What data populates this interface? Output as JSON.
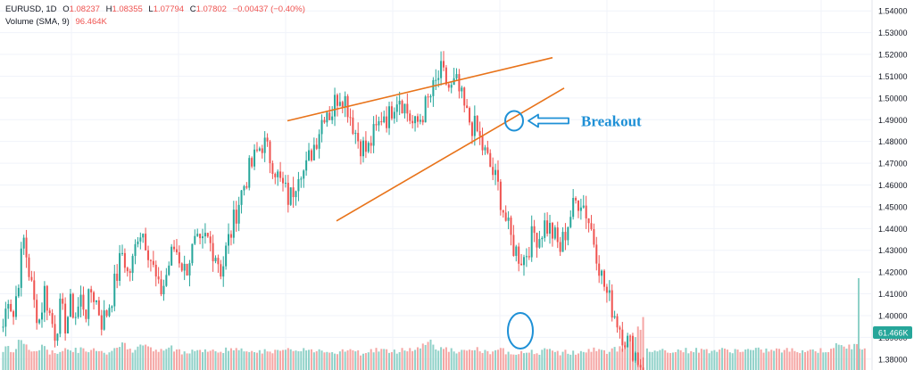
{
  "legend": {
    "symbol": "EURUSD, 1D",
    "o_label": "O",
    "o_value": "1.08237",
    "h_label": "H",
    "h_value": "1.08355",
    "l_label": "L",
    "l_value": "1.07794",
    "c_label": "C",
    "c_value": "1.07802",
    "change": "−0.00437 (−0.40%)",
    "volume_label": "Volume (SMA, 9)",
    "volume_value": "96.464K"
  },
  "colors": {
    "up": "#26a69a",
    "down": "#ef5350",
    "vol_up": "#8fd1c8",
    "vol_down": "#f5a6a4",
    "trendline": "#e8731a",
    "annotation": "#1e90d6",
    "grid": "#f0f3fa",
    "axis_text": "#131722",
    "badge": "#26a69a"
  },
  "annotation": {
    "text": "Breakout"
  },
  "volume_badge": "61.466K",
  "chart_data": {
    "type": "candlestick",
    "ylim": [
      1.375,
      1.545
    ],
    "y_ticks": [
      "1.54000",
      "1.53000",
      "1.52000",
      "1.51000",
      "1.50000",
      "1.49000",
      "1.48000",
      "1.47000",
      "1.46000",
      "1.45000",
      "1.44000",
      "1.43000",
      "1.42000",
      "1.41000",
      "1.40000",
      "1.39000",
      "1.38000"
    ],
    "grid": true,
    "series": [
      {
        "name": "EURUSD",
        "close_path": [
          1.395,
          1.41,
          1.4,
          1.418,
          1.435,
          1.42,
          1.405,
          1.398,
          1.412,
          1.4,
          1.392,
          1.403,
          1.396,
          1.405,
          1.4,
          1.408,
          1.402,
          1.412,
          1.406,
          1.397,
          1.402,
          1.41,
          1.42,
          1.43,
          1.418,
          1.425,
          1.44,
          1.438,
          1.43,
          1.42,
          1.41,
          1.415,
          1.425,
          1.432,
          1.426,
          1.42,
          1.428,
          1.433,
          1.43,
          1.436,
          1.432,
          1.428,
          1.42,
          1.432,
          1.44,
          1.45,
          1.458,
          1.465,
          1.47,
          1.476,
          1.48,
          1.474,
          1.47,
          1.462,
          1.458,
          1.453,
          1.46,
          1.47,
          1.465,
          1.474,
          1.48,
          1.488,
          1.496,
          1.492,
          1.5,
          1.503,
          1.498,
          1.49,
          1.482,
          1.478,
          1.475,
          1.482,
          1.486,
          1.494,
          1.49,
          1.498,
          1.502,
          1.497,
          1.492,
          1.486,
          1.49,
          1.495,
          1.5,
          1.505,
          1.512,
          1.508,
          1.503,
          1.507,
          1.5,
          1.492,
          1.488,
          1.485,
          1.478,
          1.472,
          1.466,
          1.46,
          1.45,
          1.44,
          1.432,
          1.428,
          1.426,
          1.432,
          1.438,
          1.436,
          1.442,
          1.44,
          1.436,
          1.43,
          1.438,
          1.446,
          1.452,
          1.454,
          1.448,
          1.44,
          1.43,
          1.418,
          1.41,
          1.404,
          1.398,
          1.392,
          1.388,
          1.385,
          1.38,
          1.376
        ],
        "volume_path": [
          0.4,
          0.45,
          0.35,
          0.55,
          0.6,
          0.4,
          0.38,
          0.42,
          0.5,
          0.36,
          0.34,
          0.4,
          0.45,
          0.38,
          0.4,
          0.42,
          0.36,
          0.4,
          0.44,
          0.38,
          0.35,
          0.42,
          0.48,
          0.55,
          0.42,
          0.4,
          0.58,
          0.5,
          0.44,
          0.4,
          0.38,
          0.42,
          0.46,
          0.4,
          0.38,
          0.36,
          0.4,
          0.42,
          0.38,
          0.4,
          0.38,
          0.36,
          0.4,
          0.42,
          0.44,
          0.4,
          0.38,
          0.4,
          0.42,
          0.4,
          0.38,
          0.36,
          0.4,
          0.38,
          0.36,
          0.4,
          0.42,
          0.44,
          0.4,
          0.38,
          0.4,
          0.42,
          0.4,
          0.38,
          0.36,
          0.4,
          0.42,
          0.38,
          0.36,
          0.34,
          0.38,
          0.4,
          0.42,
          0.4,
          0.38,
          0.36,
          0.4,
          0.42,
          0.44,
          0.4,
          0.46,
          0.55,
          0.6,
          0.48,
          0.44,
          0.42,
          0.4,
          0.38,
          0.36,
          0.38,
          0.4,
          0.42,
          0.38,
          0.36,
          0.34,
          0.38,
          0.4,
          0.36,
          0.34,
          0.38,
          0.36,
          0.34,
          0.38,
          0.36,
          0.4,
          0.38,
          0.36,
          0.34,
          0.38,
          0.36,
          0.34,
          0.38,
          0.36,
          0.4,
          0.42,
          0.38,
          0.36,
          0.4,
          0.44,
          0.5,
          0.56,
          0.62,
          0.8,
          1.0
        ]
      }
    ],
    "last_volume": "61.466K"
  }
}
